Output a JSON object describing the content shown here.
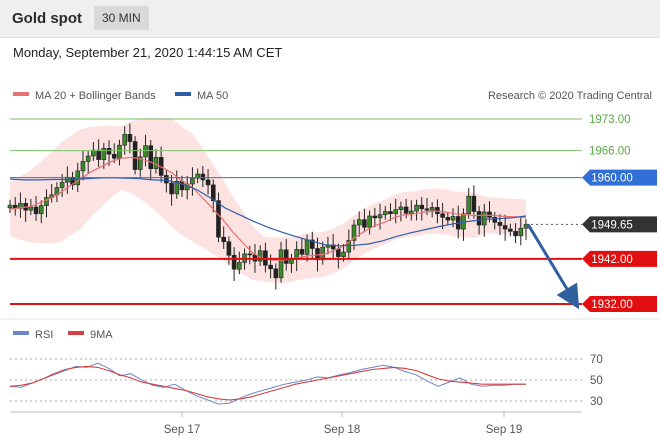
{
  "header": {
    "title": "Gold spot",
    "timeframe": "30 MIN"
  },
  "timestamp": "Monday, September 21, 2020 1:44:15 AM CET",
  "legend": {
    "ma20": "MA 20 + Bollinger Bands",
    "ma50": "MA 50",
    "credit": "Research © 2020 Trading Central",
    "rsi": "RSI",
    "ma9": "9MA"
  },
  "colors": {
    "ma20": "#e87070",
    "ma50": "#2e5ea8",
    "bands_fill": "#fde2e2",
    "green_level": "#7cc36a",
    "blue_level": "#2f6fd6",
    "red_level": "#e10f0f",
    "price_box": "#333333",
    "arrow": "#2f5f9f",
    "rsi": "#6c86c9",
    "rsi_ma": "#d64040"
  },
  "chart_data": [
    {
      "type": "line",
      "title": "Gold spot",
      "timeframe": "30 MIN",
      "ylim": [
        1929,
        1976
      ],
      "x_ticks": [
        "Sep 17",
        "Sep 18",
        "Sep 19"
      ],
      "levels": [
        {
          "value": 1973.0,
          "label": "1973.00",
          "kind": "resistance"
        },
        {
          "value": 1966.0,
          "label": "1966.00",
          "kind": "resistance"
        },
        {
          "value": 1960.0,
          "label": "1960.00",
          "kind": "pivot"
        },
        {
          "value": 1949.65,
          "label": "1949.65",
          "kind": "last"
        },
        {
          "value": 1942.0,
          "label": "1942.00",
          "kind": "support"
        },
        {
          "value": 1932.0,
          "label": "1932.00",
          "kind": "support"
        }
      ],
      "forecast_arrow": {
        "from": 1949.65,
        "to": 1932.0
      },
      "series": [
        {
          "name": "Price",
          "values": [
            1953.9,
            1953.2,
            1954.3,
            1952.8,
            1953.5,
            1952.0,
            1953.8,
            1955.6,
            1956.2,
            1957.8,
            1959.0,
            1960.1,
            1958.4,
            1961.5,
            1963.6,
            1964.8,
            1966.1,
            1964.0,
            1966.5,
            1965.2,
            1964.3,
            1967.2,
            1969.6,
            1968.0,
            1961.8,
            1964.6,
            1967.1,
            1962.0,
            1964.5,
            1960.5,
            1958.8,
            1956.4,
            1959.2,
            1957.3,
            1958.6,
            1959.9,
            1960.8,
            1959.5,
            1958.4,
            1954.9,
            1946.8,
            1945.8,
            1942.8,
            1939.7,
            1941.2,
            1943.1,
            1942.9,
            1941.5,
            1943.8,
            1940.6,
            1939.8,
            1937.8,
            1944.0,
            1941.0,
            1941.9,
            1944.1,
            1943.0,
            1946.2,
            1944.3,
            1941.8,
            1944.6,
            1945.1,
            1944.2,
            1942.5,
            1943.5,
            1946.1,
            1949.5,
            1950.7,
            1949.0,
            1951.5,
            1951.1,
            1951.8,
            1952.5,
            1952.0,
            1952.9,
            1953.5,
            1952.1,
            1952.6,
            1953.9,
            1953.1,
            1952.8,
            1953.4,
            1952.0,
            1951.2,
            1950.6,
            1951.4,
            1948.6,
            1952.0,
            1955.9,
            1952.5,
            1949.5,
            1952.4,
            1951.2,
            1950.1,
            1949.4,
            1948.6,
            1948.1,
            1947.1,
            1948.8,
            1949.65
          ]
        },
        {
          "name": "MA 20",
          "values": [
            1953.0,
            1953.3,
            1953.6,
            1954.5,
            1955.4,
            1956.7,
            1958.3,
            1959.7,
            1961.3,
            1962.4,
            1963.6,
            1964.3,
            1964.5,
            1964.1,
            1963.4,
            1962.3,
            1961.1,
            1959.2,
            1957.9,
            1955.6,
            1953.2,
            1950.8,
            1948.0,
            1945.6,
            1943.3,
            1942.0,
            1941.7,
            1941.7,
            1942.0,
            1942.5,
            1942.8,
            1943.0,
            1943.8,
            1944.9,
            1946.6,
            1948.1,
            1949.3,
            1950.1,
            1951.2,
            1951.8,
            1952.0,
            1952.4,
            1952.6,
            1952.4,
            1952.0,
            1951.8,
            1951.6,
            1951.7,
            1951.6,
            1951.4,
            1951.3,
            1951.2
          ]
        },
        {
          "name": "MA 50",
          "values": [
            1959.7,
            1959.5,
            1959.5,
            1959.6,
            1959.6,
            1959.7,
            1959.9,
            1960.0,
            1959.9,
            1959.8,
            1959.5,
            1959.4,
            1958.6,
            1957.4,
            1955.5,
            1953.3,
            1951.8,
            1950.3,
            1949.0,
            1947.9,
            1946.9,
            1946.0,
            1945.1,
            1944.9,
            1945.0,
            1945.3,
            1946.0,
            1947.0,
            1947.8,
            1948.5,
            1949.2,
            1949.8,
            1950.3,
            1950.7,
            1950.9,
            1951.1,
            1951.5
          ]
        },
        {
          "name": "RSI",
          "values": [
            44,
            43,
            47,
            51,
            55,
            59,
            63,
            62,
            66,
            61,
            54,
            56,
            50,
            45,
            43,
            46,
            40,
            35,
            31,
            27,
            28,
            33,
            37,
            40,
            43,
            46,
            48,
            50,
            53,
            52,
            55,
            57,
            60,
            62,
            64,
            62,
            58,
            55,
            49,
            44,
            48,
            52,
            46,
            44,
            45,
            45,
            46,
            46
          ]
        },
        {
          "name": "9MA",
          "values": [
            44,
            45,
            47,
            51,
            56,
            60,
            62,
            63,
            62,
            59,
            55,
            52,
            48,
            46,
            44,
            42,
            40,
            37,
            34,
            32,
            31,
            32,
            34,
            37,
            40,
            43,
            46,
            48,
            50,
            52,
            54,
            56,
            58,
            60,
            61,
            62,
            61,
            59,
            55,
            51,
            49,
            48,
            47,
            46,
            46,
            46,
            46,
            46
          ]
        }
      ]
    },
    {
      "type": "line",
      "title": "RSI",
      "ylim": [
        20,
        80
      ],
      "y_ticks": [
        "70",
        "50",
        "30"
      ]
    }
  ]
}
